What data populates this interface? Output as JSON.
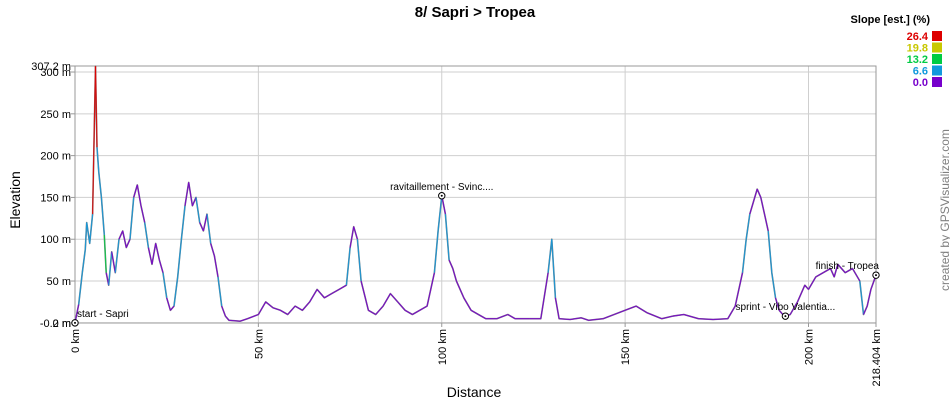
{
  "chart_data": {
    "type": "area",
    "title": "8/ Sapri > Tropea",
    "xlabel": "Distance",
    "ylabel": "Elevation",
    "x_unit": "km",
    "y_unit": "m",
    "xlim": [
      0,
      218.404
    ],
    "ylim": [
      -0.2,
      307.2
    ],
    "y_ticks": [
      {
        "value": -0.2,
        "label": "-0.2 m"
      },
      {
        "value": 0,
        "label": "0 m"
      },
      {
        "value": 50,
        "label": "50 m"
      },
      {
        "value": 100,
        "label": "100 m"
      },
      {
        "value": 150,
        "label": "150 m"
      },
      {
        "value": 200,
        "label": "200 m"
      },
      {
        "value": 250,
        "label": "250 m"
      },
      {
        "value": 300,
        "label": "300 m"
      },
      {
        "value": 307.2,
        "label": "307.2 m"
      }
    ],
    "x_ticks": [
      {
        "value": 0,
        "label": "0 km"
      },
      {
        "value": 50,
        "label": "50 km"
      },
      {
        "value": 100,
        "label": "100 km"
      },
      {
        "value": 150,
        "label": "150 km"
      },
      {
        "value": 200,
        "label": "200 km"
      },
      {
        "value": 218.404,
        "label": "218.404 km"
      }
    ],
    "grid": true,
    "profile": [
      [
        0,
        0
      ],
      [
        1,
        22
      ],
      [
        2,
        60
      ],
      [
        2.8,
        88
      ],
      [
        3.2,
        120
      ],
      [
        4,
        95
      ],
      [
        4.8,
        130
      ],
      [
        5.3,
        240
      ],
      [
        5.6,
        307
      ],
      [
        6,
        210
      ],
      [
        6.5,
        180
      ],
      [
        7.2,
        150
      ],
      [
        8,
        105
      ],
      [
        8.5,
        60
      ],
      [
        9.2,
        45
      ],
      [
        10,
        85
      ],
      [
        11,
        60
      ],
      [
        12,
        100
      ],
      [
        13,
        110
      ],
      [
        14,
        90
      ],
      [
        15,
        100
      ],
      [
        16,
        150
      ],
      [
        17,
        165
      ],
      [
        18,
        140
      ],
      [
        19,
        120
      ],
      [
        20,
        90
      ],
      [
        21,
        70
      ],
      [
        22,
        95
      ],
      [
        23,
        75
      ],
      [
        24,
        60
      ],
      [
        25,
        30
      ],
      [
        26,
        15
      ],
      [
        27,
        20
      ],
      [
        28,
        55
      ],
      [
        29,
        100
      ],
      [
        30,
        140
      ],
      [
        31,
        168
      ],
      [
        32,
        140
      ],
      [
        33,
        150
      ],
      [
        34,
        120
      ],
      [
        35,
        110
      ],
      [
        36,
        130
      ],
      [
        37,
        95
      ],
      [
        38,
        80
      ],
      [
        39,
        55
      ],
      [
        40,
        20
      ],
      [
        41,
        8
      ],
      [
        42,
        3
      ],
      [
        45,
        2
      ],
      [
        47,
        5
      ],
      [
        50,
        10
      ],
      [
        52,
        25
      ],
      [
        54,
        18
      ],
      [
        56,
        15
      ],
      [
        58,
        10
      ],
      [
        60,
        20
      ],
      [
        62,
        15
      ],
      [
        64,
        25
      ],
      [
        66,
        40
      ],
      [
        68,
        30
      ],
      [
        70,
        35
      ],
      [
        72,
        40
      ],
      [
        74,
        45
      ],
      [
        75,
        90
      ],
      [
        76,
        115
      ],
      [
        77,
        100
      ],
      [
        78,
        50
      ],
      [
        80,
        15
      ],
      [
        82,
        10
      ],
      [
        84,
        20
      ],
      [
        86,
        35
      ],
      [
        88,
        25
      ],
      [
        90,
        15
      ],
      [
        92,
        10
      ],
      [
        94,
        15
      ],
      [
        96,
        20
      ],
      [
        98,
        60
      ],
      [
        99,
        110
      ],
      [
        100,
        152
      ],
      [
        101,
        130
      ],
      [
        102,
        75
      ],
      [
        103,
        65
      ],
      [
        104,
        50
      ],
      [
        106,
        30
      ],
      [
        108,
        15
      ],
      [
        110,
        10
      ],
      [
        112,
        5
      ],
      [
        115,
        5
      ],
      [
        118,
        10
      ],
      [
        120,
        5
      ],
      [
        124,
        5
      ],
      [
        127,
        5
      ],
      [
        129,
        60
      ],
      [
        130,
        100
      ],
      [
        131,
        30
      ],
      [
        132,
        5
      ],
      [
        135,
        4
      ],
      [
        138,
        6
      ],
      [
        140,
        3
      ],
      [
        144,
        5
      ],
      [
        147,
        10
      ],
      [
        150,
        15
      ],
      [
        153,
        20
      ],
      [
        156,
        12
      ],
      [
        160,
        5
      ],
      [
        163,
        8
      ],
      [
        166,
        10
      ],
      [
        170,
        5
      ],
      [
        174,
        4
      ],
      [
        178,
        5
      ],
      [
        180,
        20
      ],
      [
        182,
        60
      ],
      [
        183,
        100
      ],
      [
        184,
        130
      ],
      [
        185,
        145
      ],
      [
        186,
        160
      ],
      [
        187,
        150
      ],
      [
        188,
        130
      ],
      [
        189,
        110
      ],
      [
        190,
        60
      ],
      [
        191,
        30
      ],
      [
        192,
        15
      ],
      [
        193,
        10
      ],
      [
        194,
        8
      ],
      [
        195,
        10
      ],
      [
        197,
        25
      ],
      [
        199,
        45
      ],
      [
        200,
        40
      ],
      [
        202,
        55
      ],
      [
        204,
        60
      ],
      [
        206,
        65
      ],
      [
        207,
        55
      ],
      [
        208,
        70
      ],
      [
        210,
        60
      ],
      [
        212,
        65
      ],
      [
        214,
        50
      ],
      [
        215,
        10
      ],
      [
        216,
        20
      ],
      [
        217,
        40
      ],
      [
        218.404,
        57
      ]
    ],
    "waypoints": [
      {
        "x": 0,
        "y": 0,
        "label": "start - Sapri",
        "anchor": "start"
      },
      {
        "x": 100,
        "y": 152,
        "label": "ravitaillement - Svinc....",
        "anchor": "middle"
      },
      {
        "x": 193.7,
        "y": 8,
        "label": "sprint - Vibo Valentia...",
        "anchor": "middle"
      },
      {
        "x": 218.404,
        "y": 57,
        "label": "finish - Tropea",
        "anchor": "end"
      }
    ],
    "legend": {
      "title": "Slope [est.] (%)",
      "placement": "top-right",
      "entries": [
        {
          "label": "26.4",
          "color": "#dd0000"
        },
        {
          "label": "19.8",
          "color": "#c8c800"
        },
        {
          "label": "13.2",
          "color": "#00cc44"
        },
        {
          "label": "6.6",
          "color": "#1199dd"
        },
        {
          "label": "0.0",
          "color": "#7700cc"
        }
      ]
    },
    "line_color": "#808080",
    "credit": "created by GPSVisualizer.com"
  }
}
